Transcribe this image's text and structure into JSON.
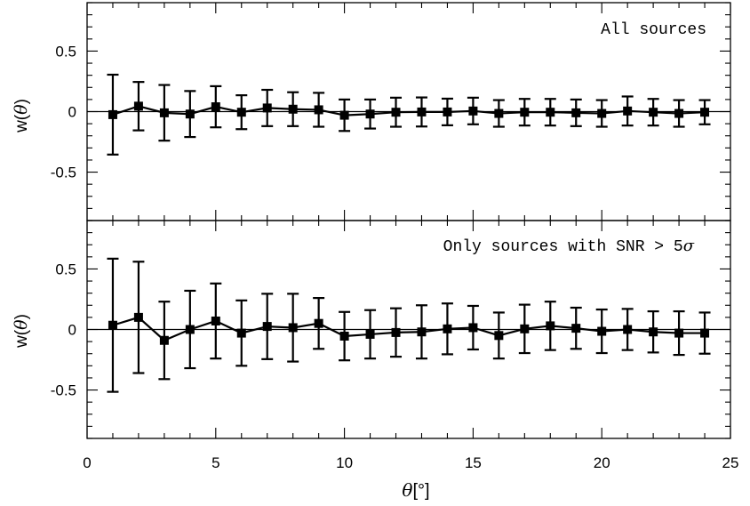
{
  "chart_data": [
    {
      "type": "scatter",
      "panel": "top",
      "annotation": "All sources",
      "ylabel": "w(θ)",
      "xlim": [
        0,
        25
      ],
      "ylim": [
        -0.9,
        0.9
      ],
      "x_ticks": [
        0,
        5,
        10,
        15,
        20,
        25
      ],
      "y_ticks": [
        -0.5,
        0,
        0.5
      ],
      "y_tick_labels": [
        "-0.5",
        "0",
        "0.5"
      ],
      "zero_line": true,
      "grid": false,
      "markers": "filled-square",
      "connected": true,
      "error_bars": true,
      "series": [
        {
          "x": [
            1,
            2,
            3,
            4,
            5,
            6,
            7,
            8,
            9,
            10,
            11,
            12,
            13,
            14,
            15,
            16,
            17,
            18,
            19,
            20,
            21,
            22,
            23,
            24
          ],
          "y": [
            -0.025,
            0.045,
            -0.01,
            -0.02,
            0.04,
            -0.005,
            0.03,
            0.02,
            0.015,
            -0.03,
            -0.02,
            -0.005,
            -0.003,
            -0.003,
            0.005,
            -0.015,
            -0.005,
            -0.005,
            -0.01,
            -0.015,
            0.005,
            -0.005,
            -0.015,
            -0.005
          ],
          "err": [
            0.33,
            0.2,
            0.23,
            0.19,
            0.17,
            0.14,
            0.15,
            0.14,
            0.14,
            0.13,
            0.12,
            0.12,
            0.12,
            0.11,
            0.11,
            0.11,
            0.11,
            0.11,
            0.11,
            0.11,
            0.12,
            0.11,
            0.11,
            0.1
          ]
        }
      ]
    },
    {
      "type": "scatter",
      "panel": "bottom",
      "annotation_prefix": "Only sources with SNR > 5",
      "annotation_symbol": "σ",
      "xlabel_symbol": "θ",
      "xlabel_unit": "[°]",
      "ylabel": "w(θ)",
      "xlim": [
        0,
        25
      ],
      "ylim": [
        -0.9,
        0.9
      ],
      "x_ticks": [
        0,
        5,
        10,
        15,
        20,
        25
      ],
      "x_tick_labels": [
        "0",
        "5",
        "10",
        "15",
        "20",
        "25"
      ],
      "y_ticks": [
        -0.5,
        0,
        0.5
      ],
      "y_tick_labels": [
        "-0.5",
        "0",
        "0.5"
      ],
      "zero_line": true,
      "grid": false,
      "markers": "filled-square",
      "connected": true,
      "error_bars": true,
      "series": [
        {
          "x": [
            1,
            2,
            3,
            4,
            5,
            6,
            7,
            8,
            9,
            10,
            11,
            12,
            13,
            14,
            15,
            16,
            17,
            18,
            19,
            20,
            21,
            22,
            23,
            24
          ],
          "y": [
            0.035,
            0.1,
            -0.09,
            0.0,
            0.07,
            -0.03,
            0.025,
            0.015,
            0.05,
            -0.055,
            -0.04,
            -0.025,
            -0.02,
            0.005,
            0.015,
            -0.05,
            0.005,
            0.03,
            0.01,
            -0.015,
            0.0,
            -0.02,
            -0.03,
            -0.03
          ],
          "err": [
            0.55,
            0.46,
            0.32,
            0.32,
            0.31,
            0.27,
            0.27,
            0.28,
            0.21,
            0.2,
            0.2,
            0.2,
            0.22,
            0.21,
            0.18,
            0.19,
            0.2,
            0.2,
            0.17,
            0.18,
            0.17,
            0.17,
            0.18,
            0.17
          ]
        }
      ]
    }
  ]
}
